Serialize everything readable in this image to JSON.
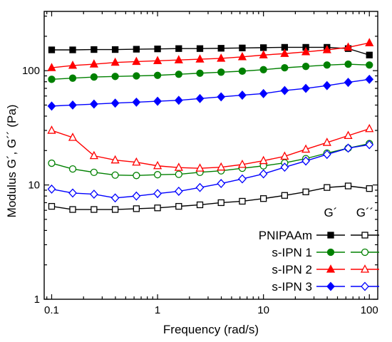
{
  "chart_data": {
    "type": "line",
    "xlabel": "Frequency (rad/s)",
    "ylabel": "Modulus G´, G´´ (Pa)",
    "xscale": "log",
    "yscale": "log",
    "xlim": [
      0.085,
      120
    ],
    "ylim": [
      1,
      330
    ],
    "x_ticks": [
      0.1,
      1,
      10,
      100
    ],
    "x_tick_labels": [
      "0.1",
      "1",
      "10",
      "100"
    ],
    "y_ticks": [
      1,
      10,
      100
    ],
    "y_tick_labels": [
      "1",
      "10",
      "100"
    ],
    "legend": {
      "placement": "bottom-right",
      "header_gprime": "G´",
      "header_gdoubleprime": "G´´"
    },
    "grid": false,
    "x": [
      0.1,
      0.158,
      0.251,
      0.398,
      0.631,
      1,
      1.585,
      2.512,
      3.981,
      6.31,
      10,
      15.85,
      25.12,
      39.81,
      63.1,
      100
    ],
    "series": [
      {
        "name": "PNIPAAm",
        "color": "#000000",
        "marker": "square",
        "gprime": [
          152,
          152,
          153,
          153,
          154,
          155,
          156,
          156,
          157,
          158,
          159,
          160,
          160,
          160,
          156,
          137
        ],
        "gdoubleprime": [
          6.5,
          6.1,
          6.1,
          6.1,
          6.2,
          6.3,
          6.5,
          6.7,
          7.0,
          7.2,
          7.6,
          8.1,
          8.7,
          9.5,
          9.8,
          9.3
        ]
      },
      {
        "name": "s-IPN 1",
        "color": "#008000",
        "marker": "circle",
        "gprime": [
          84,
          86,
          88,
          89,
          90,
          91,
          93,
          95,
          97,
          99,
          102,
          106,
          109,
          112,
          114,
          112
        ],
        "gdoubleprime": [
          15.5,
          13.8,
          12.9,
          12.2,
          12.1,
          12.3,
          12.4,
          12.9,
          13.3,
          14.0,
          14.7,
          15.6,
          17.0,
          19.0,
          21.0,
          23.0
        ]
      },
      {
        "name": "s-IPN 2",
        "color": "#ff0000",
        "marker": "triangle",
        "gprime": [
          106,
          111,
          114,
          118,
          120,
          122,
          124,
          126,
          128,
          132,
          137,
          141,
          146,
          152,
          160,
          175
        ],
        "gdoubleprime": [
          30,
          26,
          18,
          16.5,
          15.8,
          14.7,
          14.2,
          14.0,
          14.3,
          15.1,
          16.3,
          17.8,
          20.5,
          23.5,
          27.0,
          31.0
        ]
      },
      {
        "name": "s-IPN 3",
        "color": "#0000ff",
        "marker": "diamond",
        "gprime": [
          49,
          50,
          51,
          52,
          53,
          54,
          55,
          57,
          59,
          61,
          63,
          67,
          70,
          74,
          79,
          84
        ],
        "gdoubleprime": [
          9.2,
          8.5,
          8.3,
          7.7,
          8.0,
          8.4,
          8.8,
          9.5,
          10.3,
          11.3,
          12.5,
          14.3,
          16.2,
          18.5,
          21.0,
          22.5
        ]
      }
    ]
  }
}
